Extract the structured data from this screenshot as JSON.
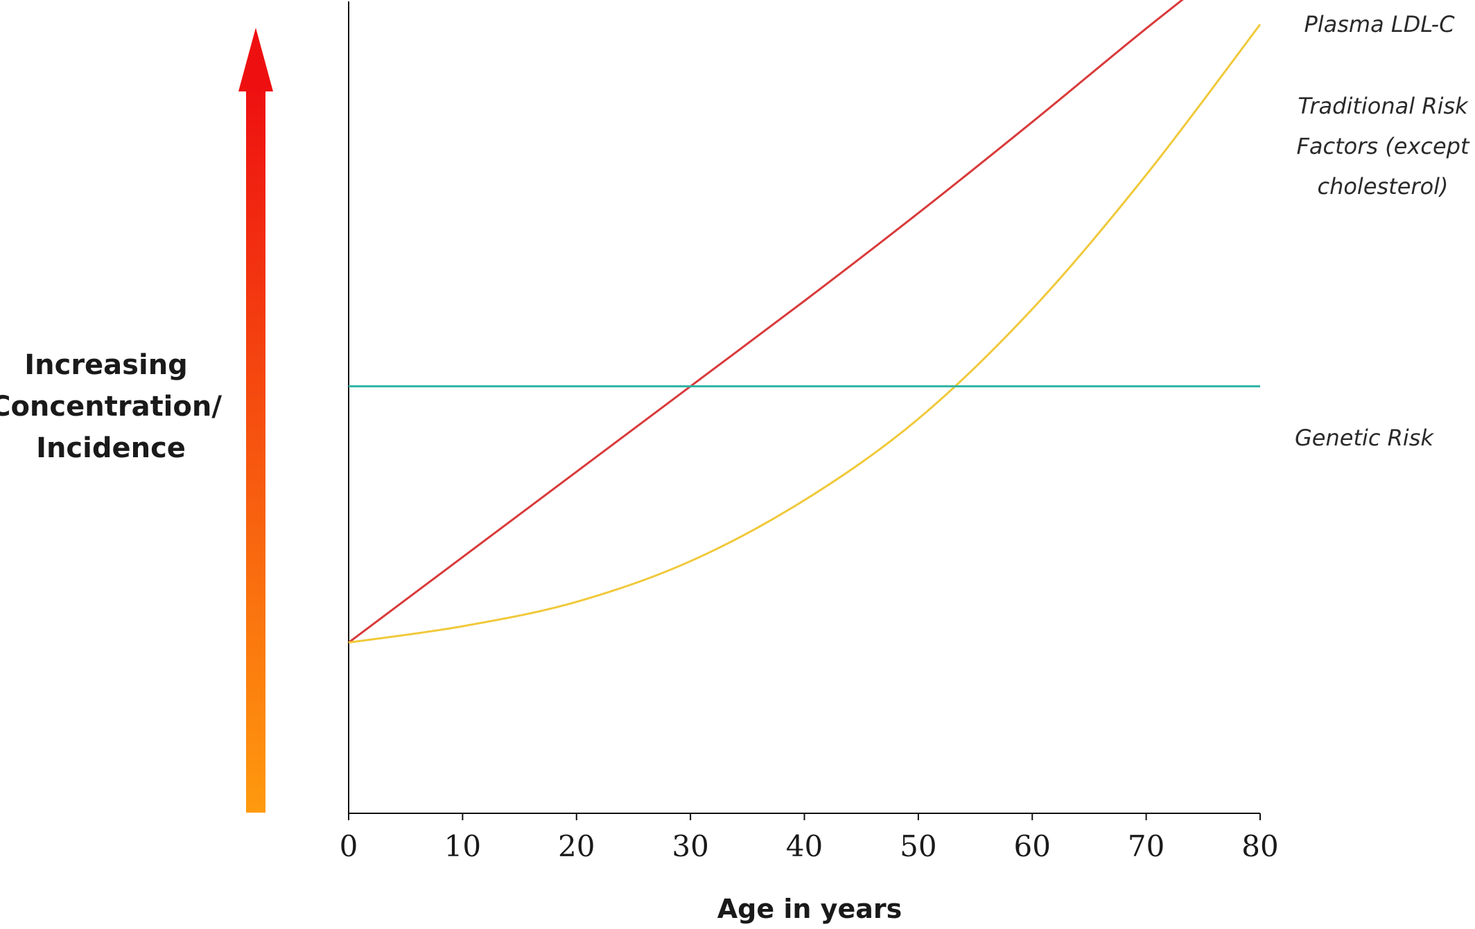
{
  "chart_data": {
    "type": "line",
    "title": "",
    "xlabel": "Age in years",
    "ylabel_lines": [
      "Increasing",
      "Concentration/",
      "Incidence"
    ],
    "x_ticks": [
      0,
      10,
      20,
      30,
      40,
      50,
      60,
      70,
      80
    ],
    "xlim": [
      0,
      80
    ],
    "ylim": [
      0,
      100
    ],
    "grid": false,
    "legend": "inline labels at right end of each line",
    "y_arrow": {
      "direction": "up",
      "gradient_colors": [
        "#ff9a0e",
        "#ee1010"
      ]
    },
    "series": [
      {
        "name": "Plasma LDL-C",
        "label_lines": [
          "Plasma LDL-C"
        ],
        "color": "#d93a3a",
        "x": [
          0,
          10,
          20,
          30,
          40,
          50,
          60,
          70,
          80
        ],
        "y": [
          21.0,
          31.5,
          42.0,
          52.5,
          63.0,
          73.8,
          85.0,
          96.5,
          107.5
        ]
      },
      {
        "name": "Traditional Risk Factors (except cholesterol)",
        "label_lines": [
          "Traditional Risk",
          "Factors (except",
          "cholesterol)"
        ],
        "color": "#f0c93a",
        "x": [
          0,
          10,
          20,
          30,
          40,
          50,
          60,
          70,
          80
        ],
        "y": [
          21.0,
          23.0,
          26.0,
          31.0,
          38.5,
          48.5,
          62.0,
          78.5,
          97.0
        ]
      },
      {
        "name": "Genetic Risk",
        "label_lines": [
          "Genetic Risk"
        ],
        "color": "#2fb3a3",
        "x": [
          0,
          80
        ],
        "y": [
          52.5,
          52.5
        ]
      }
    ]
  }
}
